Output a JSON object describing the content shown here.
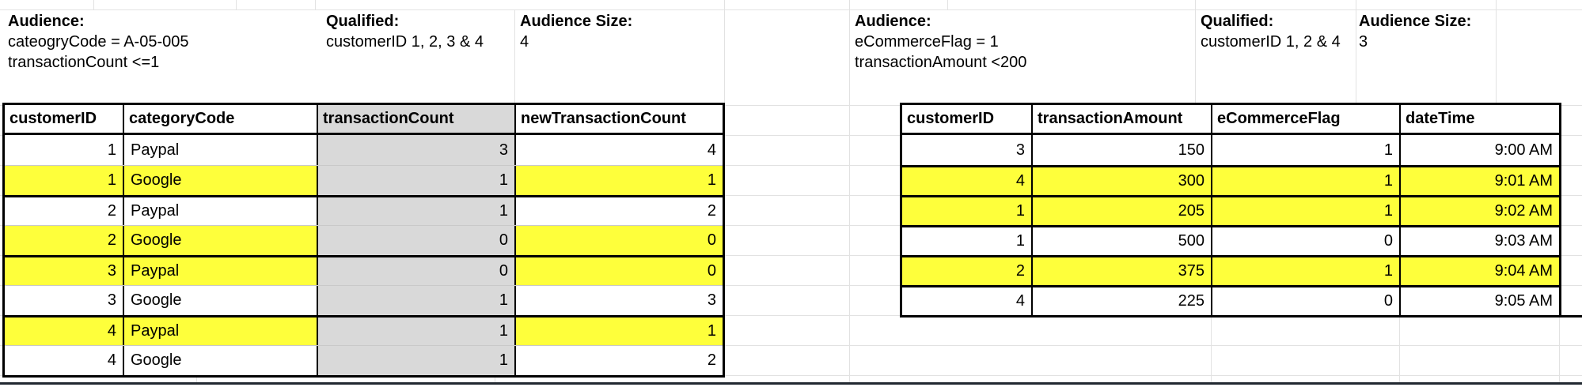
{
  "sheet": {
    "left": {
      "audience_label": "Audience:",
      "audience_line1": "cateogryCode = A-05-005",
      "audience_line2": "transactionCount <=1",
      "qualified_label": "Qualified:",
      "qualified_value": "customerID 1, 2, 3 & 4",
      "size_label": "Audience Size:",
      "size_value": "4",
      "table": {
        "columns": [
          "customerID",
          "categoryCode",
          "transactionCount",
          "newTransactionCount"
        ],
        "shaded_column": "transactionCount",
        "rows": [
          {
            "cells": [
              "1",
              "Paypal",
              "3",
              "4"
            ],
            "highlighted": false
          },
          {
            "cells": [
              "1",
              "Google",
              "1",
              "1"
            ],
            "highlighted": true
          },
          {
            "cells": [
              "2",
              "Paypal",
              "1",
              "2"
            ],
            "highlighted": false
          },
          {
            "cells": [
              "2",
              "Google",
              "0",
              "0"
            ],
            "highlighted": true
          },
          {
            "cells": [
              "3",
              "Paypal",
              "0",
              "0"
            ],
            "highlighted": true
          },
          {
            "cells": [
              "3",
              "Google",
              "1",
              "3"
            ],
            "highlighted": false
          },
          {
            "cells": [
              "4",
              "Paypal",
              "1",
              "1"
            ],
            "highlighted": true
          },
          {
            "cells": [
              "4",
              "Google",
              "1",
              "2"
            ],
            "highlighted": false
          }
        ]
      }
    },
    "right": {
      "audience_label": "Audience:",
      "audience_line1": "eCommerceFlag = 1",
      "audience_line2": "transactionAmount <200",
      "qualified_label": "Qualified:",
      "qualified_value": "customerID 1, 2 & 4",
      "size_label": "Audience Size:",
      "size_value": "3",
      "table": {
        "columns": [
          "customerID",
          "transactionAmount",
          "eCommerceFlag",
          "dateTime"
        ],
        "shaded_column": null,
        "rows": [
          {
            "cells": [
              "3",
              "150",
              "1",
              "9:00 AM"
            ],
            "highlighted": false
          },
          {
            "cells": [
              "4",
              "300",
              "1",
              "9:01 AM"
            ],
            "highlighted": true
          },
          {
            "cells": [
              "1",
              "205",
              "1",
              "9:02 AM"
            ],
            "highlighted": true
          },
          {
            "cells": [
              "1",
              "500",
              "0",
              "9:03 AM"
            ],
            "highlighted": false
          },
          {
            "cells": [
              "2",
              "375",
              "1",
              "9:04 AM"
            ],
            "highlighted": true
          },
          {
            "cells": [
              "4",
              "225",
              "0",
              "9:05 AM"
            ],
            "highlighted": false
          }
        ]
      }
    }
  },
  "colors": {
    "highlight_yellow": "#feff3b",
    "shaded_gray": "#d9d9d9",
    "gridline_gray": "#e2e2e2",
    "border_black": "#000000",
    "bottom_bar_dark": "#212830"
  }
}
